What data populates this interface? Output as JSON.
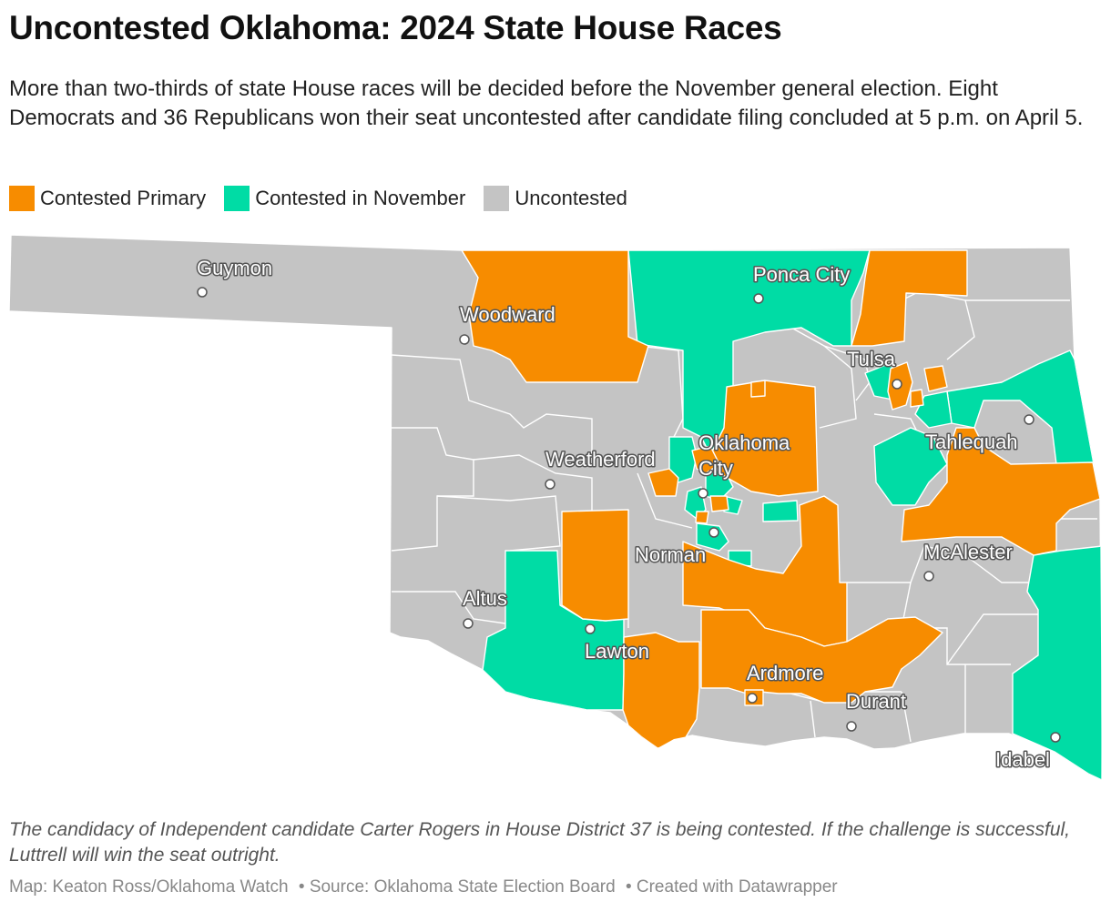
{
  "title": "Uncontested Oklahoma: 2024 State House Races",
  "subtitle": "More than two-thirds of state House races will be decided before the November general election. Eight Democrats and 36 Republicans won their seat uncontested after candidate filing concluded at 5 p.m. on April 5.",
  "legend": [
    {
      "label": "Contested Primary",
      "color": "#f78c00"
    },
    {
      "label": "Contested in November",
      "color": "#00dca5"
    },
    {
      "label": "Uncontested",
      "color": "#c4c4c4"
    }
  ],
  "colors": {
    "primary": "#f78c00",
    "november": "#00dca5",
    "uncontested": "#c4c4c4"
  },
  "cities": [
    {
      "name": "Guymon"
    },
    {
      "name": "Woodward"
    },
    {
      "name": "Ponca City"
    },
    {
      "name": "Tulsa"
    },
    {
      "name": "Oklahoma"
    },
    {
      "name": "City"
    },
    {
      "name": "Weatherford"
    },
    {
      "name": "Tahlequah"
    },
    {
      "name": "Norman"
    },
    {
      "name": "McAlester"
    },
    {
      "name": "Altus"
    },
    {
      "name": "Lawton"
    },
    {
      "name": "Ardmore"
    },
    {
      "name": "Durant"
    },
    {
      "name": "Idabel"
    }
  ],
  "note": "The candidacy of Independent candidate Carter Rogers in House District 37 is being contested. If the challenge is successful, Luttrell will win the seat outright.",
  "footer": {
    "credit": "Map: Keaton Ross/Oklahoma Watch",
    "source": "• Source: Oklahoma State Election Board",
    "tool": "• Created with Datawrapper"
  }
}
